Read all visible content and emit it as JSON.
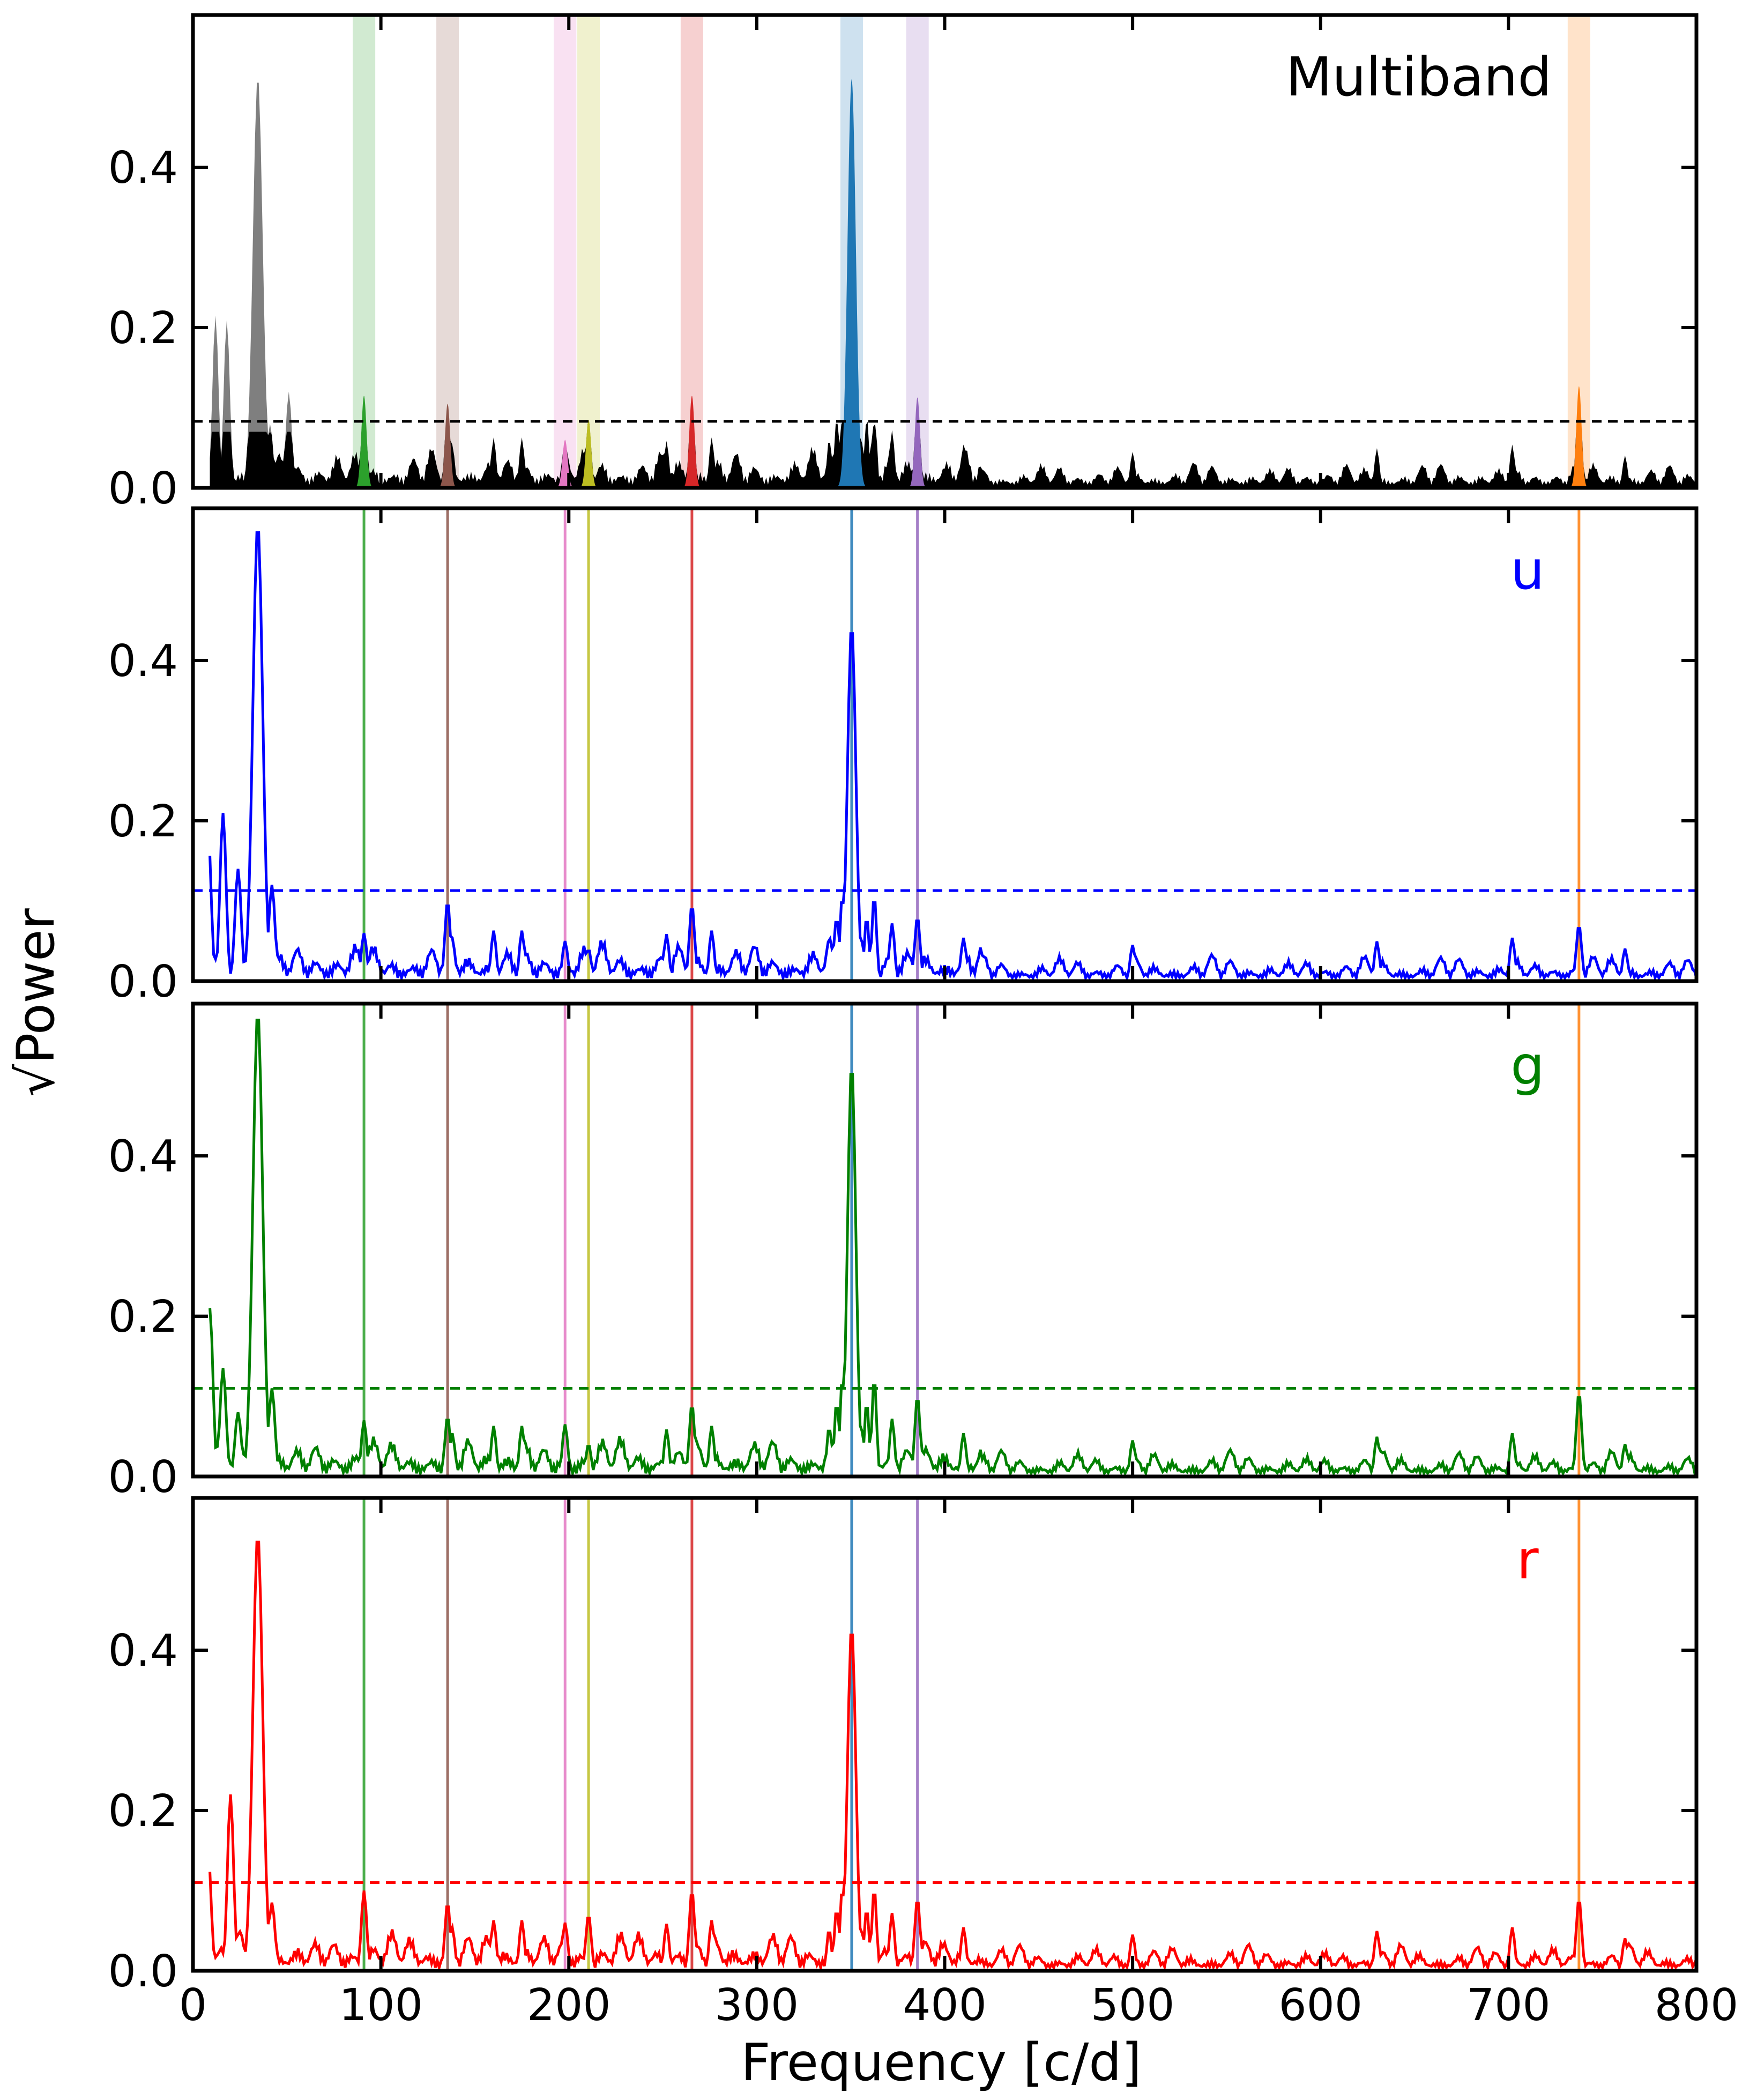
{
  "chart_data": {
    "type": "line",
    "xlabel": "Frequency [c/d]",
    "ylabel": "Power",
    "ylabel_prefix": "√",
    "xlim": [
      0,
      800
    ],
    "ylim": [
      0,
      0.59
    ],
    "xticks": [
      0,
      100,
      200,
      300,
      400,
      500,
      600,
      700,
      800
    ],
    "yticks": [
      0.0,
      0.2,
      0.4
    ],
    "ytick_labels": [
      "0.0",
      "0.2",
      "0.4"
    ],
    "xtick_labels": [
      "0",
      "100",
      "200",
      "300",
      "400",
      "500",
      "600",
      "700",
      "800"
    ],
    "marked_frequencies": [
      {
        "freq": 91,
        "color": "#2ca02c"
      },
      {
        "freq": 135.5,
        "color": "#8c564b"
      },
      {
        "freq": 198,
        "color": "#e377c2"
      },
      {
        "freq": 210.5,
        "color": "#bcbd22"
      },
      {
        "freq": 265.5,
        "color": "#d62728"
      },
      {
        "freq": 350.5,
        "color": "#1f77b4"
      },
      {
        "freq": 385.5,
        "color": "#9467bd"
      },
      {
        "freq": 737.5,
        "color": "#ff7f0e"
      }
    ],
    "panels": [
      {
        "label": "Multiband",
        "label_color": "#000000",
        "style": "filled",
        "threshold": 0.083,
        "threshold_color": "#000000",
        "low_freq_peaks": [
          [
            12,
            0.215
          ],
          [
            18,
            0.21
          ],
          [
            34.5,
            0.515
          ],
          [
            51,
            0.12
          ],
          [
            41,
            0.08
          ]
        ],
        "marked_peak_heights": [
          0.115,
          0.105,
          0.06,
          0.085,
          0.115,
          0.51,
          0.113,
          0.127
        ],
        "line_color": "#000000"
      },
      {
        "label": "u",
        "label_color": "#0000ff",
        "style": "line",
        "threshold": 0.113,
        "threshold_color": "#0000ff",
        "line_color": "#0000ff",
        "low_freq_peaks": [
          [
            8,
            0.19
          ],
          [
            16,
            0.21
          ],
          [
            24,
            0.14
          ],
          [
            34.5,
            0.57
          ],
          [
            42,
            0.12
          ]
        ],
        "marked_peak_heights": [
          0.06,
          0.1,
          0.05,
          0.04,
          0.095,
          0.445,
          0.08,
          0.07
        ]
      },
      {
        "label": "g",
        "label_color": "#008000",
        "style": "line",
        "threshold": 0.11,
        "threshold_color": "#008000",
        "line_color": "#008000",
        "low_freq_peaks": [
          [
            9,
            0.21
          ],
          [
            16,
            0.135
          ],
          [
            24,
            0.08
          ],
          [
            34.5,
            0.58
          ],
          [
            42,
            0.11
          ]
        ],
        "marked_peak_heights": [
          0.07,
          0.075,
          0.065,
          0.04,
          0.09,
          0.515,
          0.1,
          0.105
        ]
      },
      {
        "label": "r",
        "label_color": "#ff0000",
        "style": "line",
        "threshold": 0.11,
        "threshold_color": "#ff0000",
        "line_color": "#ff0000",
        "low_freq_peaks": [
          [
            8,
            0.15
          ],
          [
            20,
            0.22
          ],
          [
            34.5,
            0.545
          ],
          [
            42,
            0.085
          ]
        ],
        "marked_peak_heights": [
          0.1,
          0.085,
          0.06,
          0.07,
          0.1,
          0.43,
          0.09,
          0.09
        ]
      }
    ]
  }
}
